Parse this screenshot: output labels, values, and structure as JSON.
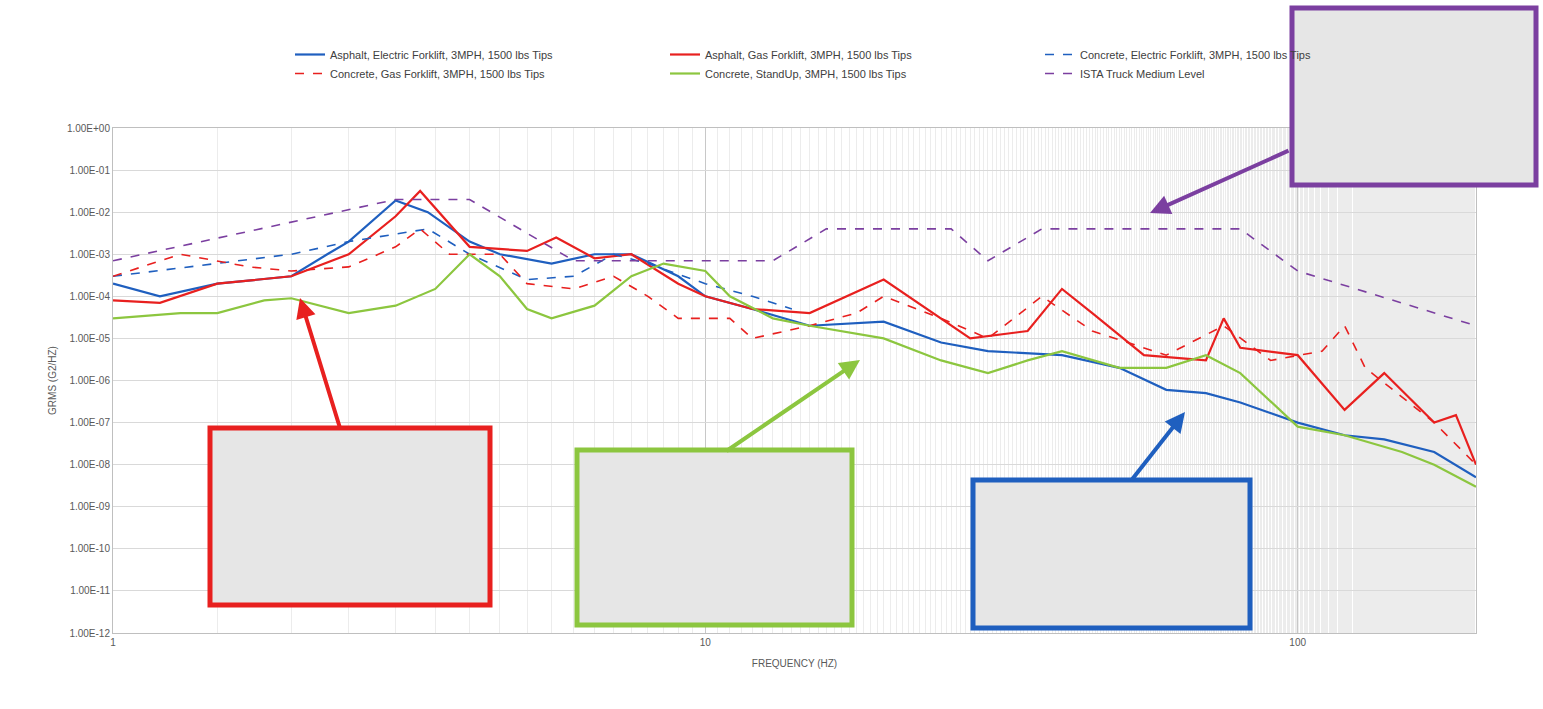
{
  "chart_data": {
    "type": "line",
    "x_label": "FREQUENCY (HZ)",
    "y_label": "GRMS (G2/HZ)",
    "log": true,
    "grid": true,
    "legend": "top",
    "xlim": [
      1,
      200
    ],
    "xticks": [
      1,
      10,
      100
    ],
    "ylim": [
      1e-12,
      1
    ],
    "yticks": [
      {
        "value": 1,
        "label": "1.00E+00"
      },
      {
        "value": 0.1,
        "label": "1.00E-01"
      },
      {
        "value": 0.01,
        "label": "1.00E-02"
      },
      {
        "value": 0.001,
        "label": "1.00E-03"
      },
      {
        "value": 0.0001,
        "label": "1.00E-04"
      },
      {
        "value": 1e-05,
        "label": "1.00E-05"
      },
      {
        "value": 1e-06,
        "label": "1.00E-06"
      },
      {
        "value": 1e-07,
        "label": "1.00E-07"
      },
      {
        "value": 1e-08,
        "label": "1.00E-08"
      },
      {
        "value": 1e-09,
        "label": "1.00E-09"
      },
      {
        "value": 1e-10,
        "label": "1.00E-10"
      },
      {
        "value": 1e-11,
        "label": "1.00E-11"
      },
      {
        "value": 1e-12,
        "label": "1.00E-12"
      }
    ],
    "series": [
      {
        "name": "Asphalt, Electric Forklift, 3MPH, 1500 lbs Tips",
        "color": "#1f5fbf",
        "line_style": "solid",
        "x": [
          1,
          1.2,
          1.5,
          2,
          2.3,
          2.5,
          3,
          3.4,
          4,
          4.5,
          5.5,
          6.5,
          7.5,
          9,
          10,
          12,
          15,
          20,
          25,
          30,
          40,
          50,
          60,
          70,
          80,
          100,
          120,
          140,
          170,
          200
        ],
        "values": [
          0.0002,
          0.0001,
          0.0002,
          0.0003,
          0.001,
          0.002,
          0.019,
          0.01,
          0.002,
          0.001,
          0.0006,
          0.001,
          0.001,
          0.0003,
          0.0001,
          5e-05,
          2e-05,
          2.5e-05,
          8e-06,
          5e-06,
          4e-06,
          2e-06,
          6e-07,
          5e-07,
          3e-07,
          1e-07,
          5e-08,
          4e-08,
          2e-08,
          5e-09
        ]
      },
      {
        "name": "Asphalt, Gas Forklift, 3MPH, 1500 lbs Tips",
        "color": "#e8201f",
        "line_style": "solid",
        "x": [
          1,
          1.2,
          1.5,
          2,
          2.5,
          3,
          3.3,
          3.6,
          4,
          5,
          5.6,
          6.5,
          7.5,
          9,
          10,
          12,
          15,
          20,
          22,
          28,
          35,
          40,
          45,
          55,
          70,
          75,
          80,
          100,
          120,
          140,
          170,
          185,
          200
        ],
        "values": [
          8e-05,
          7e-05,
          0.0002,
          0.0003,
          0.001,
          0.008,
          0.032,
          0.008,
          0.0015,
          0.0012,
          0.0025,
          0.0008,
          0.001,
          0.0002,
          0.0001,
          5e-05,
          4e-05,
          0.00025,
          0.0001,
          1e-05,
          1.5e-05,
          0.00015,
          4e-05,
          4e-06,
          3e-06,
          3e-05,
          6e-06,
          4e-06,
          2e-07,
          1.5e-06,
          1e-07,
          1.5e-07,
          1e-08
        ]
      },
      {
        "name": "Concrete, Electric Forklift, 3MPH, 1500 lbs Tips",
        "color": "#1f5fbf",
        "line_style": "dash",
        "x": [
          1,
          1.5,
          2,
          2.5,
          3,
          3.4,
          4,
          5,
          6,
          7,
          8,
          10,
          12,
          14
        ],
        "values": [
          0.0003,
          0.0006,
          0.001,
          0.002,
          0.003,
          0.004,
          0.001,
          0.00025,
          0.0003,
          0.001,
          0.0006,
          0.0002,
          0.0001,
          5e-05
        ]
      },
      {
        "name": "Concrete, Gas Forklift, 3MPH, 1500 lbs Tips",
        "color": "#e8201f",
        "line_style": "dash",
        "x": [
          1,
          1.3,
          1.7,
          2,
          2.5,
          3,
          3.3,
          3.7,
          4.5,
          5,
          6,
          7,
          8,
          9,
          11,
          12,
          15,
          18,
          20,
          25,
          30,
          37,
          45,
          60,
          75,
          90,
          110,
          120,
          130,
          170,
          200
        ],
        "values": [
          0.0003,
          0.001,
          0.0005,
          0.0004,
          0.0005,
          0.0015,
          0.004,
          0.001,
          0.001,
          0.0002,
          0.00015,
          0.0003,
          0.0001,
          3e-05,
          3e-05,
          1e-05,
          2e-05,
          4e-05,
          0.0001,
          3e-05,
          1e-05,
          0.0001,
          1.5e-05,
          4e-06,
          2e-05,
          3e-06,
          5e-06,
          2e-05,
          2e-06,
          1e-07,
          1e-08
        ]
      },
      {
        "name": "Concrete, StandUp, 3MPH, 1500 lbs Tips",
        "color": "#8cc63f",
        "line_style": "solid",
        "x": [
          1,
          1.3,
          1.5,
          1.8,
          2,
          2.5,
          3,
          3.5,
          4,
          4.5,
          5,
          5.5,
          6.5,
          7.5,
          8.5,
          10,
          11,
          13,
          15,
          20,
          25,
          30,
          35,
          40,
          50,
          60,
          70,
          80,
          100,
          120,
          150,
          170,
          200
        ],
        "values": [
          3e-05,
          4e-05,
          4e-05,
          8e-05,
          9e-05,
          4e-05,
          6e-05,
          0.00015,
          0.001,
          0.0003,
          5e-05,
          3e-05,
          6e-05,
          0.0003,
          0.0006,
          0.0004,
          0.0001,
          3e-05,
          2e-05,
          1e-05,
          3e-06,
          1.5e-06,
          3e-06,
          5e-06,
          2e-06,
          2e-06,
          4e-06,
          1.5e-06,
          8e-08,
          5e-08,
          2e-08,
          1e-08,
          3e-09
        ]
      },
      {
        "name": "ISTA Truck Medium Level",
        "color": "#7b3fa0",
        "line_style": "dash",
        "x": [
          1,
          3,
          4,
          6,
          13,
          16,
          26,
          30,
          37,
          80,
          100,
          200
        ],
        "values": [
          0.0007,
          0.02,
          0.02,
          0.0007,
          0.0007,
          0.004,
          0.004,
          0.0007,
          0.004,
          0.004,
          0.0004,
          2e-05
        ]
      }
    ]
  }
}
